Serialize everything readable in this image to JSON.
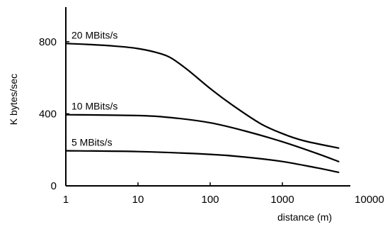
{
  "chart_data": {
    "type": "line",
    "xscale": "log",
    "xlim": [
      1,
      6000
    ],
    "ylim": [
      0,
      1000
    ],
    "xlabel": "distance  (m)",
    "ylabel": "K  bytes/sec",
    "x_ticks": [
      1,
      10,
      100,
      1000,
      10000
    ],
    "x_tick_labels": [
      "1",
      "10",
      "100",
      "1000",
      "10000"
    ],
    "y_ticks": [
      0,
      400,
      800
    ],
    "y_tick_labels": [
      "0",
      "400",
      "800"
    ],
    "grid": false,
    "series": [
      {
        "name": "20  MBits/s",
        "x": [
          1,
          2,
          5,
          10,
          20,
          30,
          50,
          100,
          200,
          500,
          1000,
          2000,
          6000
        ],
        "y": [
          790,
          785,
          775,
          762,
          735,
          705,
          640,
          540,
          450,
          345,
          290,
          250,
          210
        ]
      },
      {
        "name": "10  MBits/s",
        "x": [
          1,
          10,
          30,
          100,
          300,
          1000,
          3000,
          6000
        ],
        "y": [
          395,
          390,
          378,
          350,
          305,
          245,
          180,
          135
        ]
      },
      {
        "name": "5  MBits/s",
        "x": [
          1,
          10,
          100,
          300,
          1000,
          3000,
          6000
        ],
        "y": [
          195,
          190,
          175,
          160,
          135,
          100,
          75
        ]
      }
    ]
  }
}
